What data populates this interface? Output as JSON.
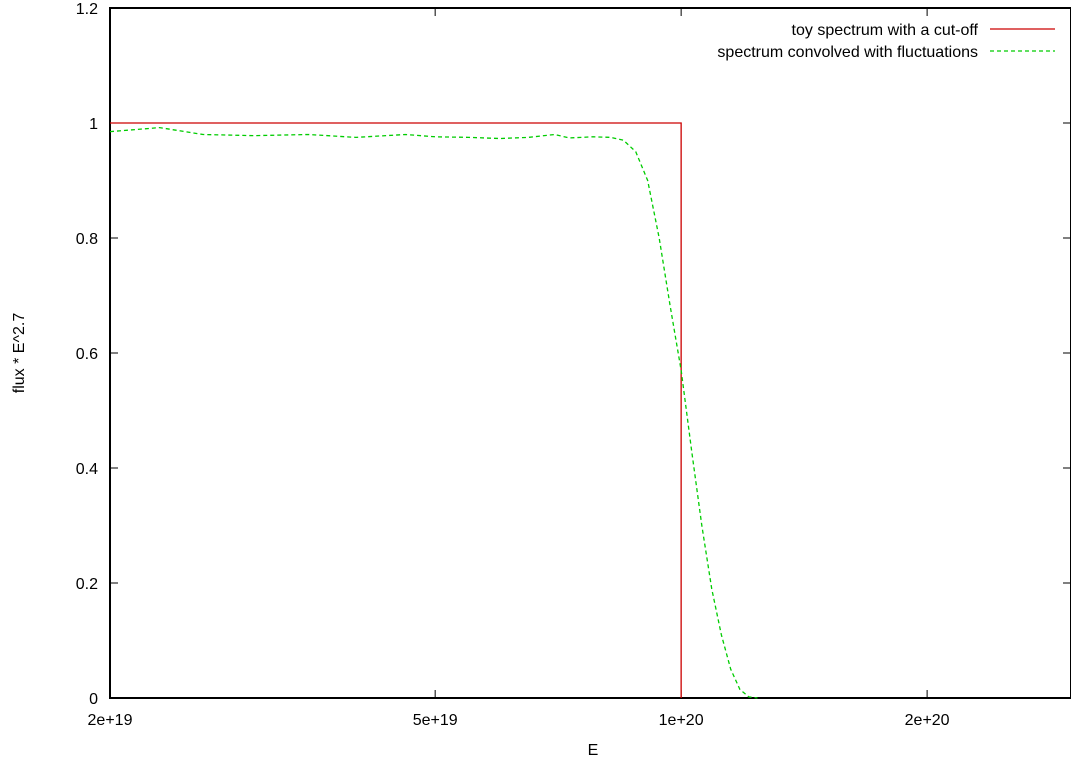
{
  "chart_data": {
    "type": "line",
    "title": "",
    "xlabel": "E",
    "ylabel": "flux * E^2.7",
    "xscale": "log",
    "xlim": [
      2e+19,
      3e+20
    ],
    "ylim": [
      0,
      1.2
    ],
    "grid": false,
    "legend_position": "top-right",
    "x_ticks": [
      {
        "value": 2e+19,
        "label": "2e+19"
      },
      {
        "value": 5e+19,
        "label": "5e+19"
      },
      {
        "value": 1e+20,
        "label": "1e+20"
      },
      {
        "value": 2e+20,
        "label": "2e+20"
      }
    ],
    "y_ticks": [
      {
        "value": 0,
        "label": "0"
      },
      {
        "value": 0.2,
        "label": "0.2"
      },
      {
        "value": 0.4,
        "label": "0.4"
      },
      {
        "value": 0.6,
        "label": "0.6"
      },
      {
        "value": 0.8,
        "label": "0.8"
      },
      {
        "value": 1.0,
        "label": "1"
      },
      {
        "value": 1.2,
        "label": "1.2"
      }
    ],
    "series": [
      {
        "name": "toy spectrum with a cut-off",
        "color": "#cc0000",
        "style": "solid",
        "x": [
          2e+19,
          1e+20,
          1e+20
        ],
        "y": [
          1.0,
          1.0,
          0.0
        ]
      },
      {
        "name": "spectrum convolved with fluctuations",
        "color": "#00cc00",
        "style": "dashed",
        "x": [
          2e+19,
          2.3e+19,
          2.6e+19,
          3e+19,
          3.5e+19,
          4e+19,
          4.6e+19,
          5e+19,
          5.5e+19,
          6e+19,
          6.5e+19,
          7e+19,
          7.3e+19,
          7.8e+19,
          8.2e+19,
          8.5e+19,
          8.8e+19,
          9.1e+19,
          9.4e+19,
          9.7e+19,
          1e+20,
          1.03e+20,
          1.06e+20,
          1.09e+20,
          1.12e+20,
          1.15e+20,
          1.18e+20,
          1.21e+20,
          1.24e+20
        ],
        "y": [
          0.985,
          0.992,
          0.98,
          0.978,
          0.98,
          0.975,
          0.98,
          0.976,
          0.975,
          0.973,
          0.975,
          0.98,
          0.974,
          0.976,
          0.975,
          0.97,
          0.95,
          0.9,
          0.8,
          0.68,
          0.57,
          0.43,
          0.3,
          0.19,
          0.11,
          0.05,
          0.015,
          0.002,
          0.0
        ]
      }
    ]
  }
}
